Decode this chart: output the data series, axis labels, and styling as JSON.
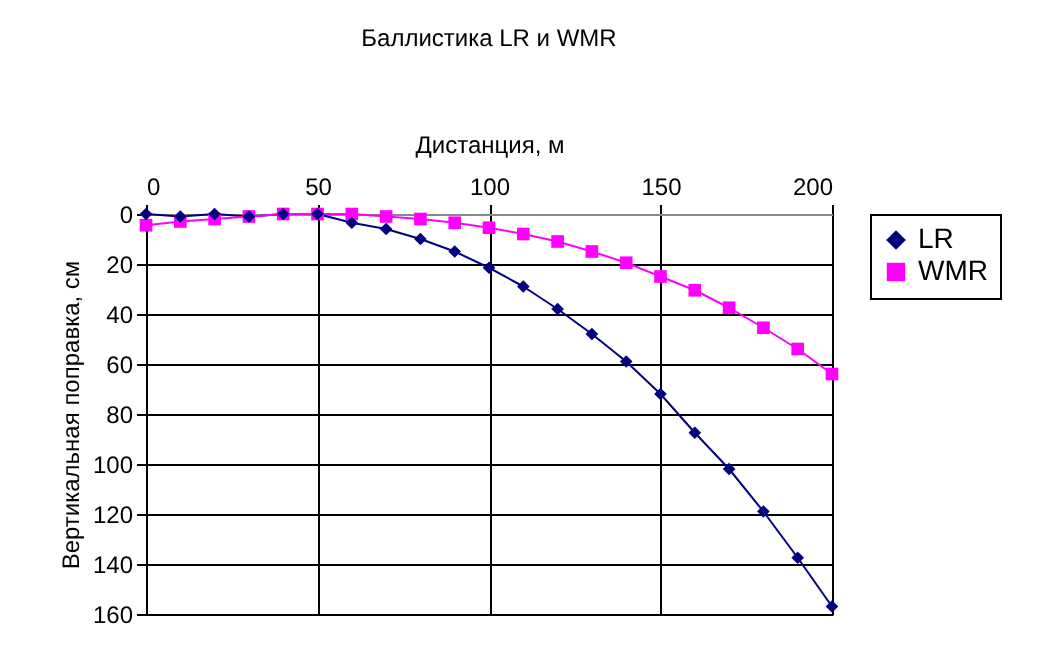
{
  "chart_data": {
    "type": "line",
    "title": "Баллистика LR и WMR",
    "xlabel": "Дистанция, м",
    "ylabel": "Вертикальная поправка, см",
    "x": [
      0,
      10,
      20,
      30,
      40,
      50,
      60,
      70,
      80,
      90,
      100,
      110,
      120,
      130,
      140,
      150,
      160,
      170,
      180,
      190,
      200
    ],
    "series": [
      {
        "name": "LR",
        "color": "#000080",
        "marker": "diamond",
        "values": [
          0,
          1,
          0,
          1,
          0,
          0,
          3.5,
          6,
          10,
          15,
          21.5,
          29,
          38,
          48,
          59,
          72,
          87.5,
          102,
          119,
          137.5,
          157
        ]
      },
      {
        "name": "WMR",
        "color": "#ff00ff",
        "marker": "square",
        "values": [
          4.5,
          3,
          2,
          1,
          0,
          0,
          0,
          1,
          2,
          3.5,
          5.5,
          8,
          11,
          15,
          19.5,
          25,
          30.5,
          37.5,
          45.5,
          54,
          64
        ]
      }
    ],
    "xlim": [
      0,
      200
    ],
    "xticks": [
      0,
      50,
      100,
      150,
      200
    ],
    "ylim": [
      160,
      0
    ],
    "yticks": [
      0,
      20,
      40,
      60,
      80,
      100,
      120,
      140,
      160
    ],
    "grid": true,
    "legend": "right",
    "line_style": "solid"
  }
}
